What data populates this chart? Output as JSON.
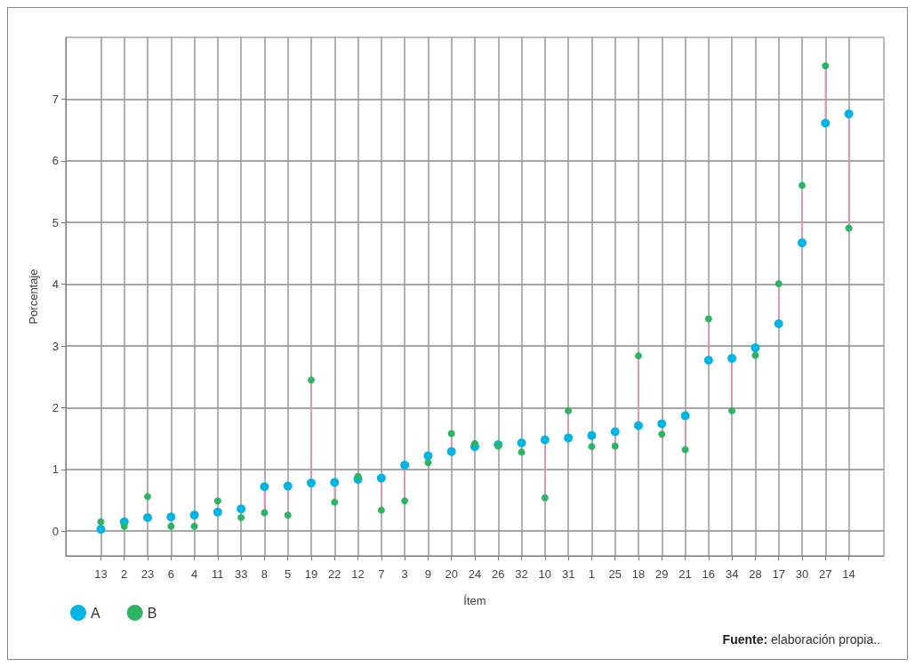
{
  "chart_data": {
    "type": "scatter",
    "xlabel": "Ítem",
    "ylabel": "Porcentaje",
    "categories": [
      "13",
      "2",
      "23",
      "6",
      "4",
      "11",
      "33",
      "8",
      "5",
      "19",
      "22",
      "12",
      "7",
      "3",
      "9",
      "20",
      "24",
      "26",
      "32",
      "10",
      "31",
      "1",
      "25",
      "18",
      "29",
      "21",
      "16",
      "34",
      "28",
      "17",
      "30",
      "27",
      "14"
    ],
    "series": [
      {
        "name": "A",
        "color": "#00b4e4",
        "values": [
          0.03,
          0.15,
          0.22,
          0.23,
          0.26,
          0.31,
          0.36,
          0.72,
          0.73,
          0.78,
          0.79,
          0.84,
          0.86,
          1.07,
          1.22,
          1.29,
          1.37,
          1.4,
          1.43,
          1.48,
          1.51,
          1.55,
          1.61,
          1.71,
          1.74,
          1.87,
          2.77,
          2.8,
          2.97,
          3.36,
          4.67,
          6.61,
          6.76
        ]
      },
      {
        "name": "B",
        "color": "#2db564",
        "values": [
          0.15,
          0.08,
          0.56,
          0.08,
          0.08,
          0.49,
          0.22,
          0.3,
          0.26,
          2.45,
          0.47,
          0.89,
          0.34,
          0.49,
          1.11,
          1.58,
          1.42,
          1.38,
          1.28,
          0.54,
          1.95,
          1.37,
          1.38,
          2.84,
          1.57,
          1.32,
          3.44,
          1.95,
          2.85,
          4.01,
          5.6,
          7.54,
          4.91
        ]
      }
    ],
    "ylim": [
      -0.4,
      8
    ],
    "yticks": [
      0,
      1,
      2,
      3,
      4,
      5,
      6,
      7
    ],
    "grid": true,
    "legend": "bottom left",
    "marker": "circle",
    "annotations": [
      "Fuente: elaboración propia.."
    ]
  }
}
